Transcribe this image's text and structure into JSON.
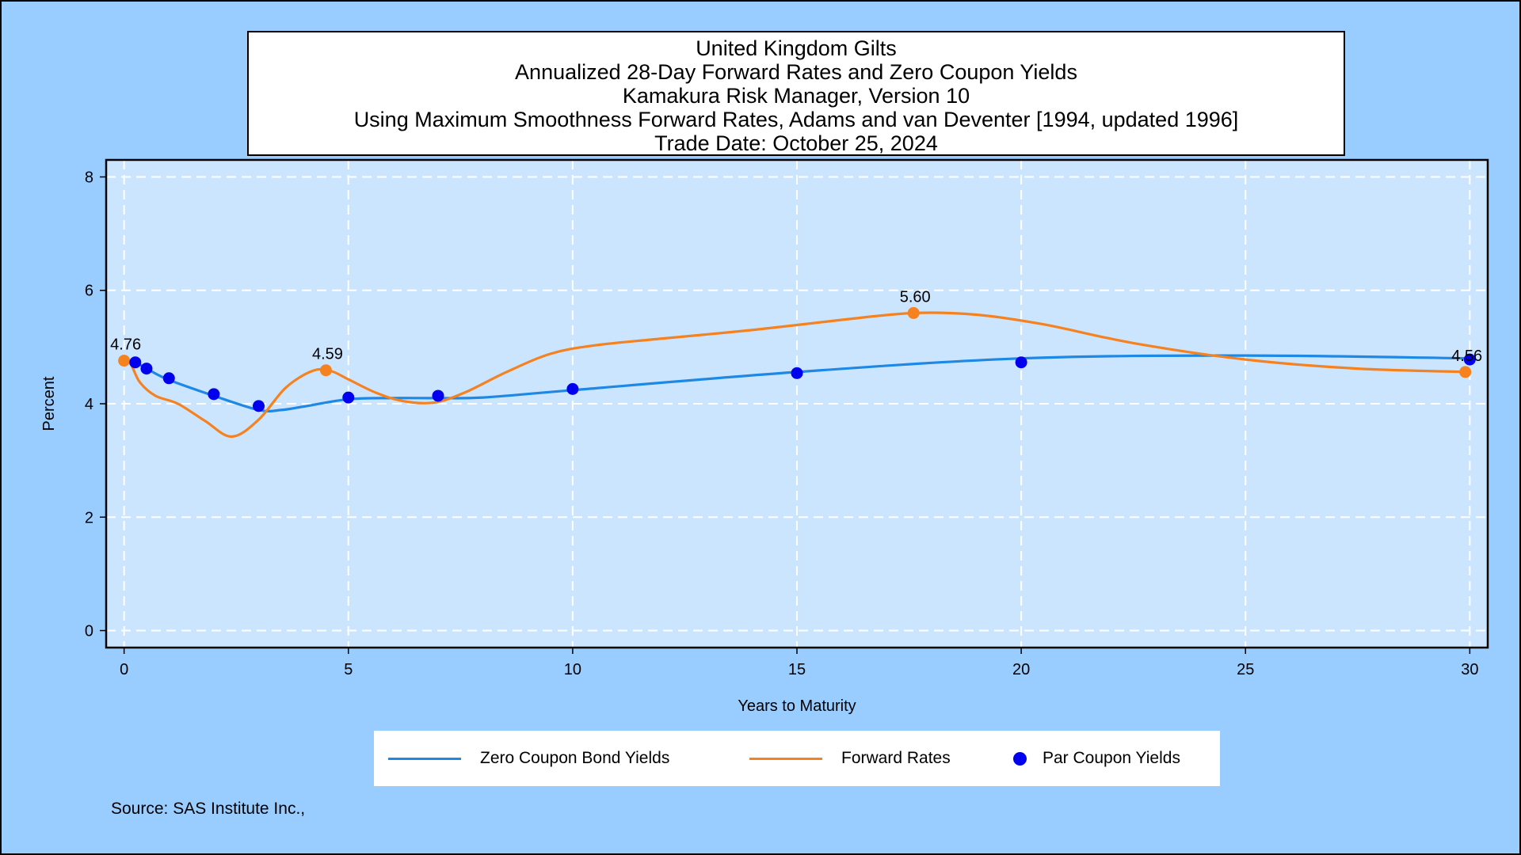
{
  "title_lines": [
    "United Kingdom Gilts",
    "Annualized 28-Day Forward Rates and Zero Coupon Yields",
    "Kamakura Risk Manager, Version 10",
    "Using Maximum Smoothness Forward Rates, Adams and van Deventer [1994, updated 1996]",
    "Trade Date: October 25, 2024"
  ],
  "source": "Source: SAS Institute Inc.,",
  "colors": {
    "zero": "#1e88e5",
    "forward": "#f5821f",
    "par": "#0000ee",
    "plot_bg": "#cce5ff",
    "page_bg": "#99ccff",
    "grid": "#ffffff"
  },
  "chart_data": {
    "type": "line",
    "xlabel": "Years to Maturity",
    "ylabel": "Percent",
    "xlim": [
      -0.4,
      30.4
    ],
    "ylim": [
      -0.3,
      8.3
    ],
    "x_ticks": [
      0,
      5,
      10,
      15,
      20,
      25,
      30
    ],
    "y_ticks": [
      0,
      2,
      4,
      6,
      8
    ],
    "grid": true,
    "legend_position": "bottom",
    "series": [
      {
        "name": "Zero Coupon Bond Yields",
        "kind": "line",
        "color": "#1e88e5",
        "x": [
          0,
          0.25,
          0.5,
          1,
          2,
          3,
          3.5,
          4,
          5,
          6,
          7,
          8,
          10,
          15,
          20,
          25,
          30
        ],
        "y": [
          4.76,
          4.73,
          4.62,
          4.42,
          4.14,
          3.89,
          3.89,
          3.95,
          4.08,
          4.1,
          4.1,
          4.11,
          4.24,
          4.56,
          4.8,
          4.85,
          4.8
        ]
      },
      {
        "name": "Forward Rates",
        "kind": "line",
        "color": "#f5821f",
        "x": [
          0,
          0.15,
          0.35,
          0.7,
          1.2,
          1.8,
          2.4,
          3.0,
          3.6,
          4.2,
          4.6,
          5.0,
          5.6,
          6.2,
          6.9,
          7.6,
          8.5,
          9.5,
          10.5,
          12.0,
          14.0,
          16.0,
          17.6,
          19.0,
          20.5,
          22.5,
          25.0,
          27.5,
          30.0
        ],
        "y": [
          4.76,
          4.7,
          4.38,
          4.14,
          4.0,
          3.7,
          3.42,
          3.72,
          4.28,
          4.58,
          4.58,
          4.43,
          4.2,
          4.05,
          4.02,
          4.2,
          4.55,
          4.88,
          5.03,
          5.15,
          5.3,
          5.48,
          5.6,
          5.57,
          5.4,
          5.07,
          4.78,
          4.62,
          4.56
        ]
      },
      {
        "name": "Par Coupon Yields",
        "kind": "scatter",
        "color": "#0000ee",
        "x": [
          0.25,
          0.5,
          1,
          2,
          3,
          5,
          7,
          10,
          15,
          20,
          30
        ],
        "y": [
          4.73,
          4.62,
          4.45,
          4.17,
          3.96,
          4.11,
          4.14,
          4.26,
          4.54,
          4.73,
          4.78
        ]
      }
    ],
    "forward_markers": [
      {
        "x": 0,
        "y": 4.76,
        "label": "4.76"
      },
      {
        "x": 4.5,
        "y": 4.59,
        "label": "4.59"
      },
      {
        "x": 17.6,
        "y": 5.6,
        "label": "5.60"
      },
      {
        "x": 29.9,
        "y": 4.56,
        "label": "4.56"
      }
    ]
  },
  "legend": {
    "items": [
      {
        "label": "Zero Coupon Bond Yields"
      },
      {
        "label": "Forward Rates"
      },
      {
        "label": "Par Coupon Yields"
      }
    ]
  }
}
